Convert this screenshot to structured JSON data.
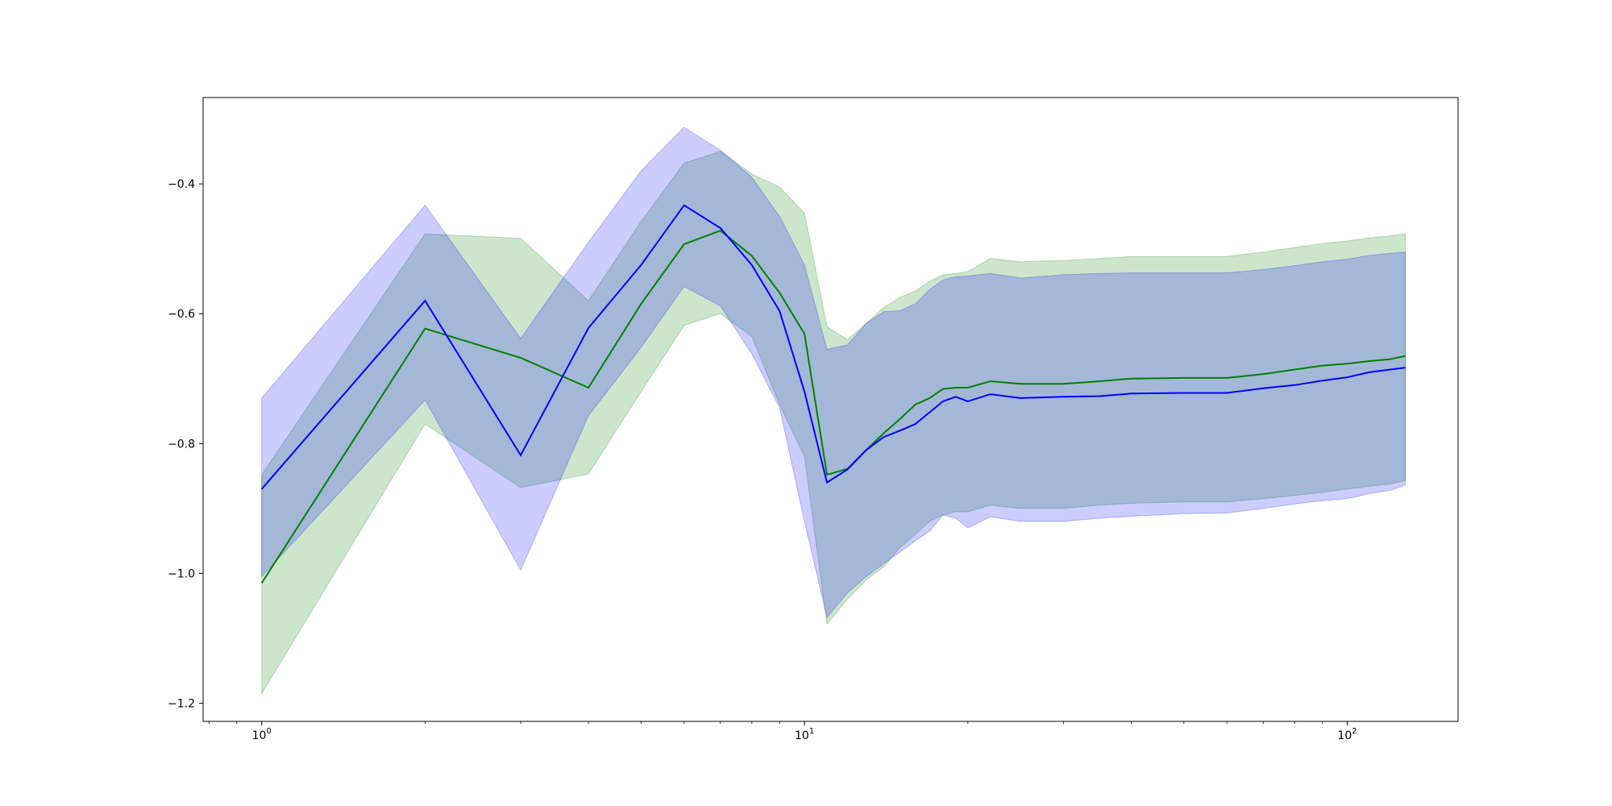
{
  "chart_data": {
    "type": "line",
    "xscale": "log",
    "xlim": [
      0.78,
      160
    ],
    "ylim": [
      -1.228,
      -0.267
    ],
    "grid": false,
    "legend": "none",
    "x_ticks": [
      {
        "value": 1,
        "base": "10",
        "exp": "0"
      },
      {
        "value": 10,
        "base": "10",
        "exp": "1"
      },
      {
        "value": 100,
        "base": "10",
        "exp": "2"
      }
    ],
    "y_ticks": [
      {
        "value": -1.2,
        "label": "−1.2"
      },
      {
        "value": -1.0,
        "label": "−1.0"
      },
      {
        "value": -0.8,
        "label": "−0.8"
      },
      {
        "value": -0.6,
        "label": "−0.6"
      },
      {
        "value": -0.4,
        "label": "−0.4"
      }
    ],
    "series": [
      {
        "color": "#008000",
        "band_color": "#008000",
        "band_opacity": 0.2,
        "x": [
          1,
          2,
          3,
          4,
          5,
          6,
          7,
          8,
          9,
          10,
          11,
          12,
          13,
          14,
          15,
          16,
          17,
          18,
          19,
          20,
          22,
          25,
          30,
          35,
          40,
          50,
          60,
          70,
          80,
          90,
          100,
          110,
          120,
          128
        ],
        "mean": [
          -1.015,
          -0.623,
          -0.668,
          -0.714,
          -0.585,
          -0.493,
          -0.472,
          -0.511,
          -0.568,
          -0.631,
          -0.848,
          -0.839,
          -0.81,
          -0.784,
          -0.762,
          -0.74,
          -0.73,
          -0.716,
          -0.714,
          -0.714,
          -0.704,
          -0.708,
          -0.708,
          -0.704,
          -0.7,
          -0.699,
          -0.699,
          -0.693,
          -0.686,
          -0.68,
          -0.677,
          -0.673,
          -0.67,
          -0.665
        ],
        "upper": [
          -0.848,
          -0.477,
          -0.484,
          -0.58,
          -0.458,
          -0.368,
          -0.35,
          -0.385,
          -0.405,
          -0.445,
          -0.62,
          -0.64,
          -0.615,
          -0.59,
          -0.575,
          -0.565,
          -0.55,
          -0.54,
          -0.538,
          -0.535,
          -0.515,
          -0.52,
          -0.518,
          -0.515,
          -0.512,
          -0.512,
          -0.512,
          -0.505,
          -0.498,
          -0.492,
          -0.488,
          -0.483,
          -0.48,
          -0.477
        ],
        "lower": [
          -1.185,
          -0.77,
          -0.868,
          -0.847,
          -0.72,
          -0.618,
          -0.6,
          -0.635,
          -0.74,
          -0.82,
          -1.078,
          -1.04,
          -1.01,
          -0.99,
          -0.96,
          -0.94,
          -0.92,
          -0.91,
          -0.905,
          -0.905,
          -0.895,
          -0.9,
          -0.9,
          -0.895,
          -0.892,
          -0.89,
          -0.89,
          -0.885,
          -0.88,
          -0.875,
          -0.87,
          -0.866,
          -0.862,
          -0.857
        ]
      },
      {
        "color": "#0000ff",
        "band_color": "#0000ff",
        "band_opacity": 0.2,
        "x": [
          1,
          2,
          3,
          4,
          5,
          6,
          7,
          8,
          9,
          10,
          11,
          12,
          13,
          14,
          15,
          16,
          17,
          18,
          19,
          20,
          22,
          25,
          30,
          35,
          40,
          50,
          60,
          70,
          80,
          90,
          100,
          110,
          120,
          128
        ],
        "mean": [
          -0.87,
          -0.58,
          -0.818,
          -0.622,
          -0.525,
          -0.433,
          -0.468,
          -0.525,
          -0.596,
          -0.72,
          -0.86,
          -0.84,
          -0.81,
          -0.79,
          -0.78,
          -0.77,
          -0.752,
          -0.735,
          -0.728,
          -0.735,
          -0.724,
          -0.73,
          -0.728,
          -0.727,
          -0.723,
          -0.722,
          -0.722,
          -0.715,
          -0.71,
          -0.703,
          -0.698,
          -0.69,
          -0.686,
          -0.683
        ],
        "upper": [
          -0.73,
          -0.433,
          -0.638,
          -0.49,
          -0.38,
          -0.313,
          -0.348,
          -0.39,
          -0.45,
          -0.525,
          -0.655,
          -0.648,
          -0.615,
          -0.597,
          -0.595,
          -0.585,
          -0.563,
          -0.548,
          -0.543,
          -0.542,
          -0.538,
          -0.545,
          -0.54,
          -0.538,
          -0.537,
          -0.537,
          -0.537,
          -0.532,
          -0.526,
          -0.52,
          -0.516,
          -0.51,
          -0.507,
          -0.505
        ],
        "lower": [
          -1.005,
          -0.733,
          -0.995,
          -0.757,
          -0.652,
          -0.558,
          -0.588,
          -0.662,
          -0.745,
          -0.92,
          -1.068,
          -1.03,
          -1.005,
          -0.985,
          -0.967,
          -0.95,
          -0.935,
          -0.91,
          -0.915,
          -0.93,
          -0.913,
          -0.92,
          -0.92,
          -0.915,
          -0.912,
          -0.908,
          -0.907,
          -0.9,
          -0.893,
          -0.888,
          -0.885,
          -0.877,
          -0.872,
          -0.864
        ]
      }
    ]
  }
}
